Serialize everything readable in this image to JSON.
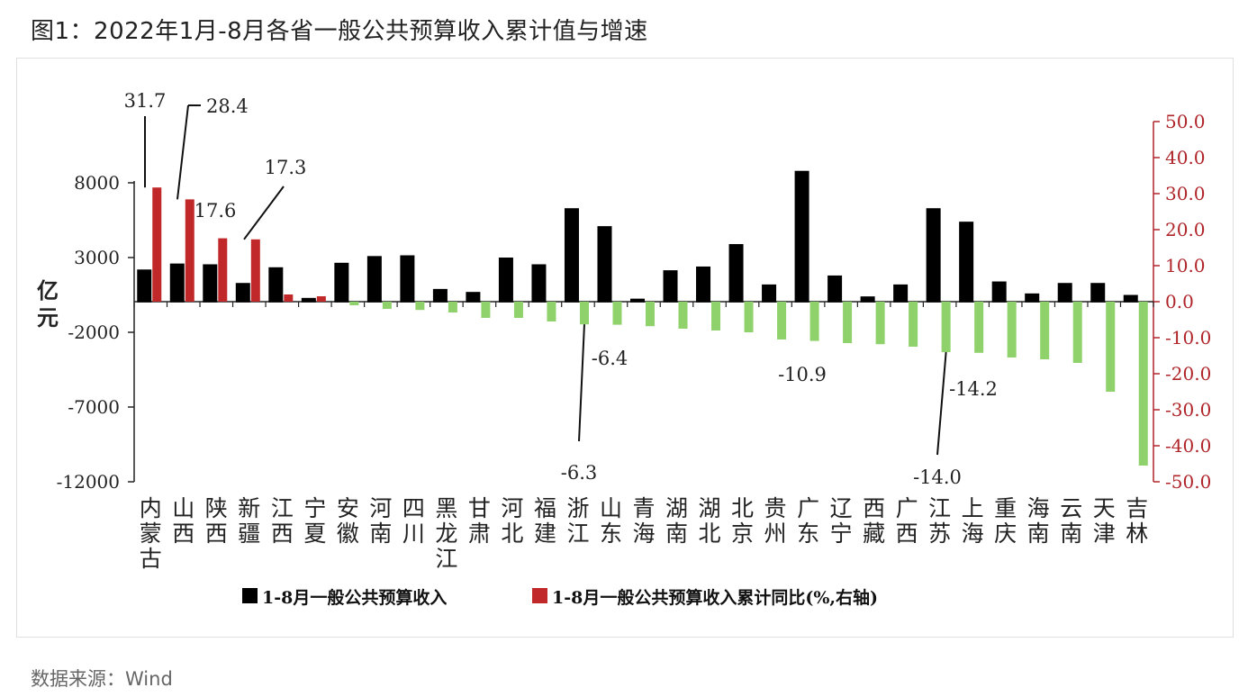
{
  "figure": {
    "title": "图1：2022年1月-8月各省一般公共预算收入累计值与增速",
    "source": "数据来源：Wind"
  },
  "chart_data": {
    "type": "bar",
    "categories": [
      "内蒙古",
      "山西",
      "陕西",
      "新疆",
      "江西",
      "宁夏",
      "安徽",
      "河南",
      "四川",
      "黑龙江",
      "甘肃",
      "河北",
      "福建",
      "浙江",
      "山东",
      "青海",
      "湖南",
      "湖北",
      "北京",
      "贵州",
      "广东",
      "辽宁",
      "西藏",
      "广西",
      "江苏",
      "上海",
      "重庆",
      "海南",
      "云南",
      "天津",
      "吉林"
    ],
    "ylabel": "亿元",
    "ylim": [
      -12000,
      8000
    ],
    "yticks": [
      "8000",
      "3000",
      "-2000",
      "-7000",
      "-12000"
    ],
    "y2lim": [
      -50,
      50
    ],
    "y2ticks": [
      "50.0",
      "40.0",
      "30.0",
      "20.0",
      "10.0",
      "0.0",
      "-10.0",
      "-20.0",
      "-30.0",
      "-40.0",
      "-50.0"
    ],
    "legend_position": "bottom",
    "series": [
      {
        "name": "1-8月一般公共预算收入",
        "color": "#000000",
        "axis": "left",
        "values": [
          2200,
          2600,
          2550,
          1300,
          2350,
          300,
          2650,
          3100,
          3150,
          900,
          700,
          3000,
          2550,
          6300,
          5100,
          250,
          2150,
          2400,
          3900,
          1200,
          8800,
          1800,
          400,
          1200,
          6300,
          5400,
          1400,
          600,
          1300,
          1300,
          500
        ]
      },
      {
        "name": "1-8月一般公共预算收入累计同比(%,右轴)",
        "color": "#c0282a",
        "axis": "right",
        "values": [
          31.7,
          28.4,
          17.6,
          17.3,
          2.0,
          1.5,
          -1.0,
          -2.0,
          -2.3,
          -3.0,
          -4.5,
          -4.5,
          -5.5,
          -6.3,
          -6.4,
          -6.8,
          -7.5,
          -8.0,
          -8.5,
          -10.5,
          -10.9,
          -11.5,
          -11.8,
          -12.5,
          -14.0,
          -14.2,
          -15.5,
          -16.0,
          -17.0,
          -25.0,
          -45.5
        ]
      }
    ],
    "annotations": [
      "31.7",
      "28.4",
      "17.6",
      "17.3",
      "-6.4",
      "-6.3",
      "-10.9",
      "-14.2",
      "-14.0"
    ],
    "colors": {
      "bar_income": "#000000",
      "bar_growth_pos": "#c0282a",
      "bar_growth_neg": "#8fd16a",
      "right_axis": "#b0252a"
    }
  }
}
